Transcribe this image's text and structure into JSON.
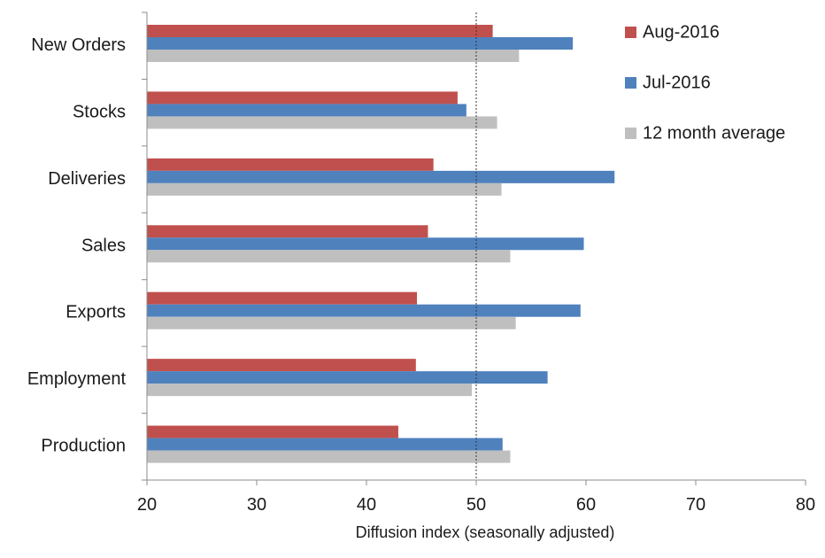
{
  "chart_data": {
    "type": "bar",
    "orientation": "horizontal",
    "title": "",
    "xlabel": "Diffusion index (seasonally adjusted)",
    "ylabel": "",
    "xlim": [
      20,
      80
    ],
    "xticks": [
      20,
      30,
      40,
      50,
      60,
      70,
      80
    ],
    "reference_line": 50,
    "grid": false,
    "legend_position": "top-right",
    "categories": [
      "New Orders",
      "Stocks",
      "Deliveries",
      "Sales",
      "Exports",
      "Employment",
      "Production"
    ],
    "series": [
      {
        "name": "Aug-2016",
        "color": "#c0504d",
        "values": [
          51.5,
          48.3,
          46.1,
          45.6,
          44.6,
          44.5,
          42.9
        ]
      },
      {
        "name": "Jul-2016",
        "color": "#4f81bd",
        "values": [
          58.8,
          49.1,
          62.6,
          59.8,
          59.5,
          56.5,
          52.4
        ]
      },
      {
        "name": "12 month average",
        "color": "#bfbfbf",
        "values": [
          53.9,
          51.9,
          52.3,
          53.1,
          53.6,
          49.6,
          53.1
        ]
      }
    ]
  }
}
